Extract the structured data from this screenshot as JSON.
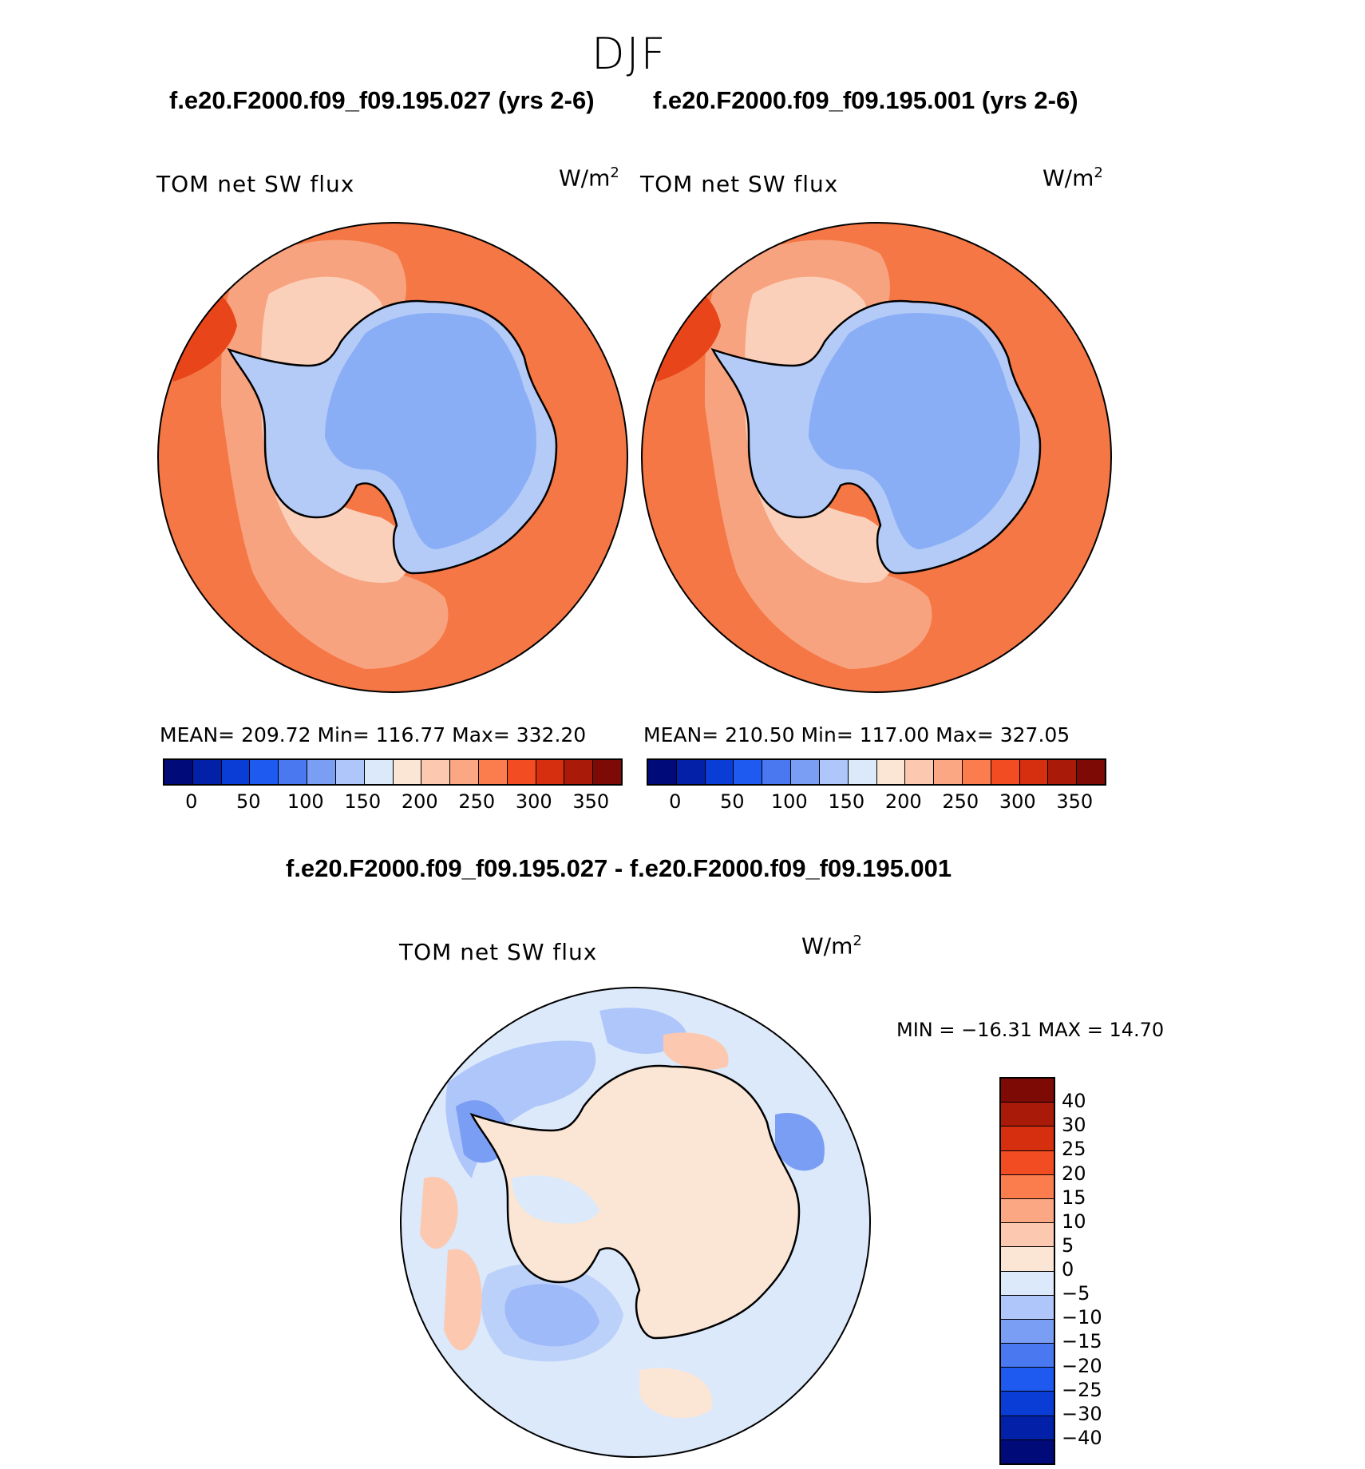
{
  "figure": {
    "season": "DJF",
    "case1_title": "f.e20.F2000.f09_f09.195.027 (yrs 2-6)",
    "case2_title": "f.e20.F2000.f09_f09.195.001 (yrs 2-6)",
    "diff_title": "f.e20.F2000.f09_f09.195.027 - f.e20.F2000.f09_f09.195.001"
  },
  "panel1": {
    "variable": "TOM net SW flux",
    "units_base": "W/m",
    "units_exp": "2",
    "stats": "MEAN= 209.72   Min= 116.77   Max= 332.20",
    "colorbar_ticks": [
      "0",
      "50",
      "100",
      "150",
      "200",
      "250",
      "300",
      "350"
    ]
  },
  "panel2": {
    "variable": "TOM net SW flux",
    "units_base": "W/m",
    "units_exp": "2",
    "stats": "MEAN= 210.50   Min= 117.00   Max= 327.05",
    "colorbar_ticks": [
      "0",
      "50",
      "100",
      "150",
      "200",
      "250",
      "300",
      "350"
    ]
  },
  "panel3": {
    "variable": "TOM net SW flux",
    "units_base": "W/m",
    "units_exp": "2",
    "minmax": "MIN = −16.31 MAX =   14.70",
    "colorbar_ticks": [
      "40",
      "30",
      "25",
      "20",
      "15",
      "10",
      "5",
      "0",
      "−5",
      "−10",
      "−15",
      "−20",
      "−25",
      "−30",
      "−40"
    ]
  },
  "colors": {
    "abs_scale": [
      "#000a78",
      "#0320a8",
      "#0a3cd6",
      "#1e5af0",
      "#4a78f0",
      "#7b9ef5",
      "#afc6fa",
      "#dbe9fb",
      "#fbe6d6",
      "#fcc9b0",
      "#fca784",
      "#fb7d4e",
      "#f24d22",
      "#d62f10",
      "#aa1a08",
      "#7d0a04"
    ],
    "diff_scale": [
      "#000a78",
      "#0320a8",
      "#0a3cd6",
      "#1e5af0",
      "#4a78f0",
      "#7b9ef5",
      "#afc6fa",
      "#dbe9fb",
      "#fbe6d6",
      "#fcc9b0",
      "#fca784",
      "#fb7d4e",
      "#f24d22",
      "#d62f10",
      "#aa1a08",
      "#7d0a04"
    ],
    "ocean_main": "#f57745",
    "ocean_light": "#f8a37f",
    "ocean_pale": "#fbd0ba",
    "ice_mid": "#8aaef5",
    "ice_light": "#b4cbf8",
    "diff_bg": "#dbe9fb",
    "diff_pos": "#fbe6d6",
    "diff_pos2": "#fcc9b0",
    "diff_neg": "#afc6fa",
    "diff_neg2": "#7b9ef5"
  }
}
